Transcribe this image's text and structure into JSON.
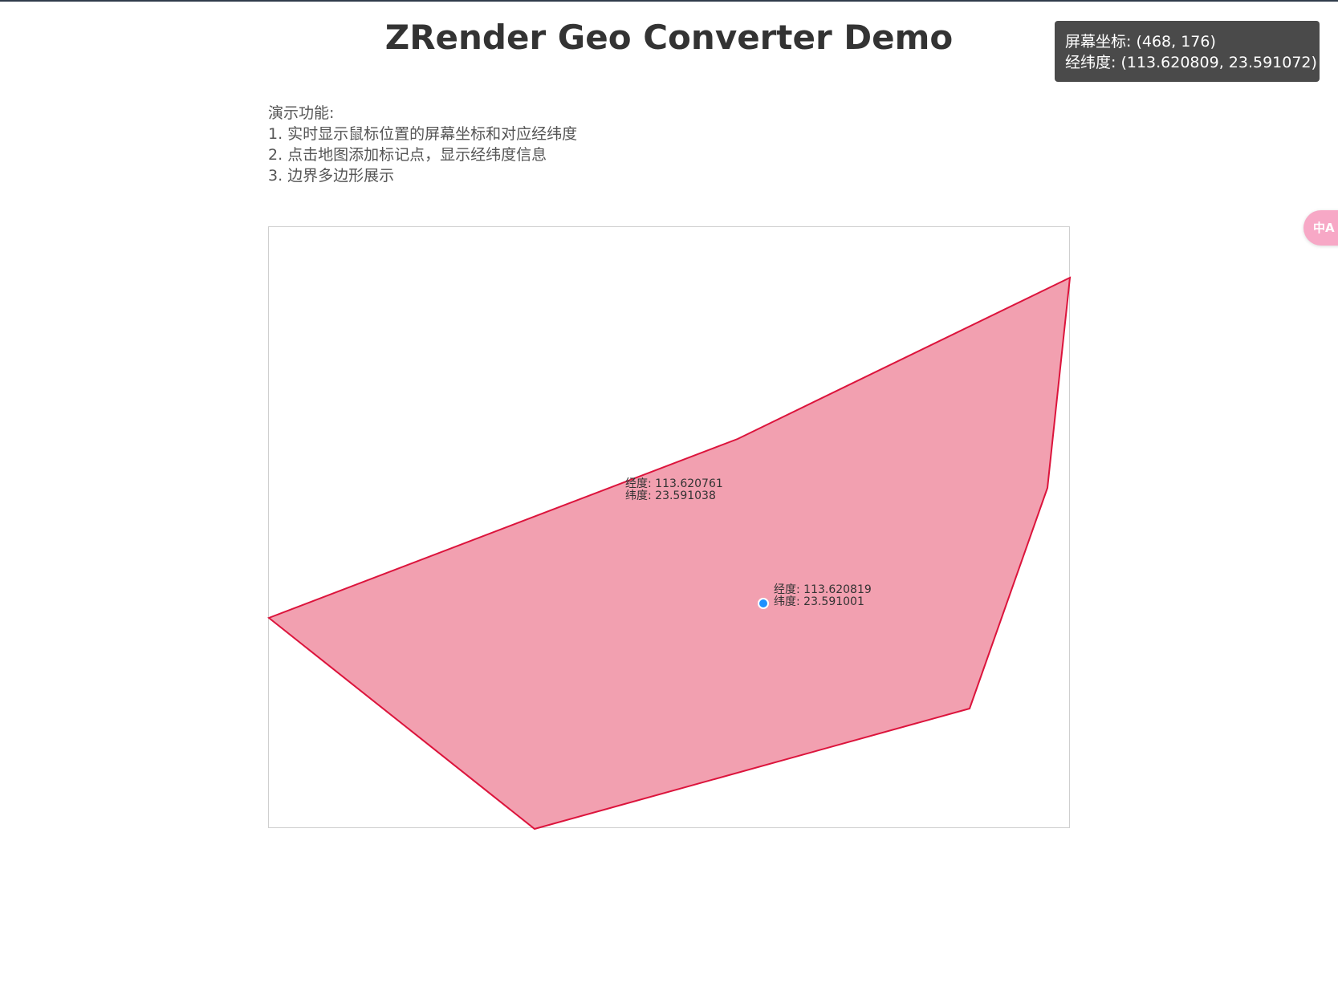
{
  "page": {
    "title": "ZRender Geo Converter Demo"
  },
  "tooltip": {
    "screen_line": "屏幕坐标: (468, 176)",
    "geo_line": "经纬度: (113.620809, 23.591072)"
  },
  "description": {
    "heading": "演示功能:",
    "items": [
      "1. 实时显示鼠标位置的屏幕坐标和对应经纬度",
      "2. 点击地图添加标记点，显示经纬度信息",
      "3. 边界多边形展示"
    ]
  },
  "map": {
    "polygon_fill": "#f2a0b0",
    "polygon_stroke": "#dc143c",
    "label_a": {
      "lng": "经度: 113.620761",
      "lat": "纬度: 23.591038"
    },
    "marker": {
      "color": "#1e90ff",
      "lng": "经度: 113.620819",
      "lat": "纬度: 23.591001"
    }
  },
  "translate_button": {
    "icon": "translate-icon",
    "label": "中A"
  }
}
